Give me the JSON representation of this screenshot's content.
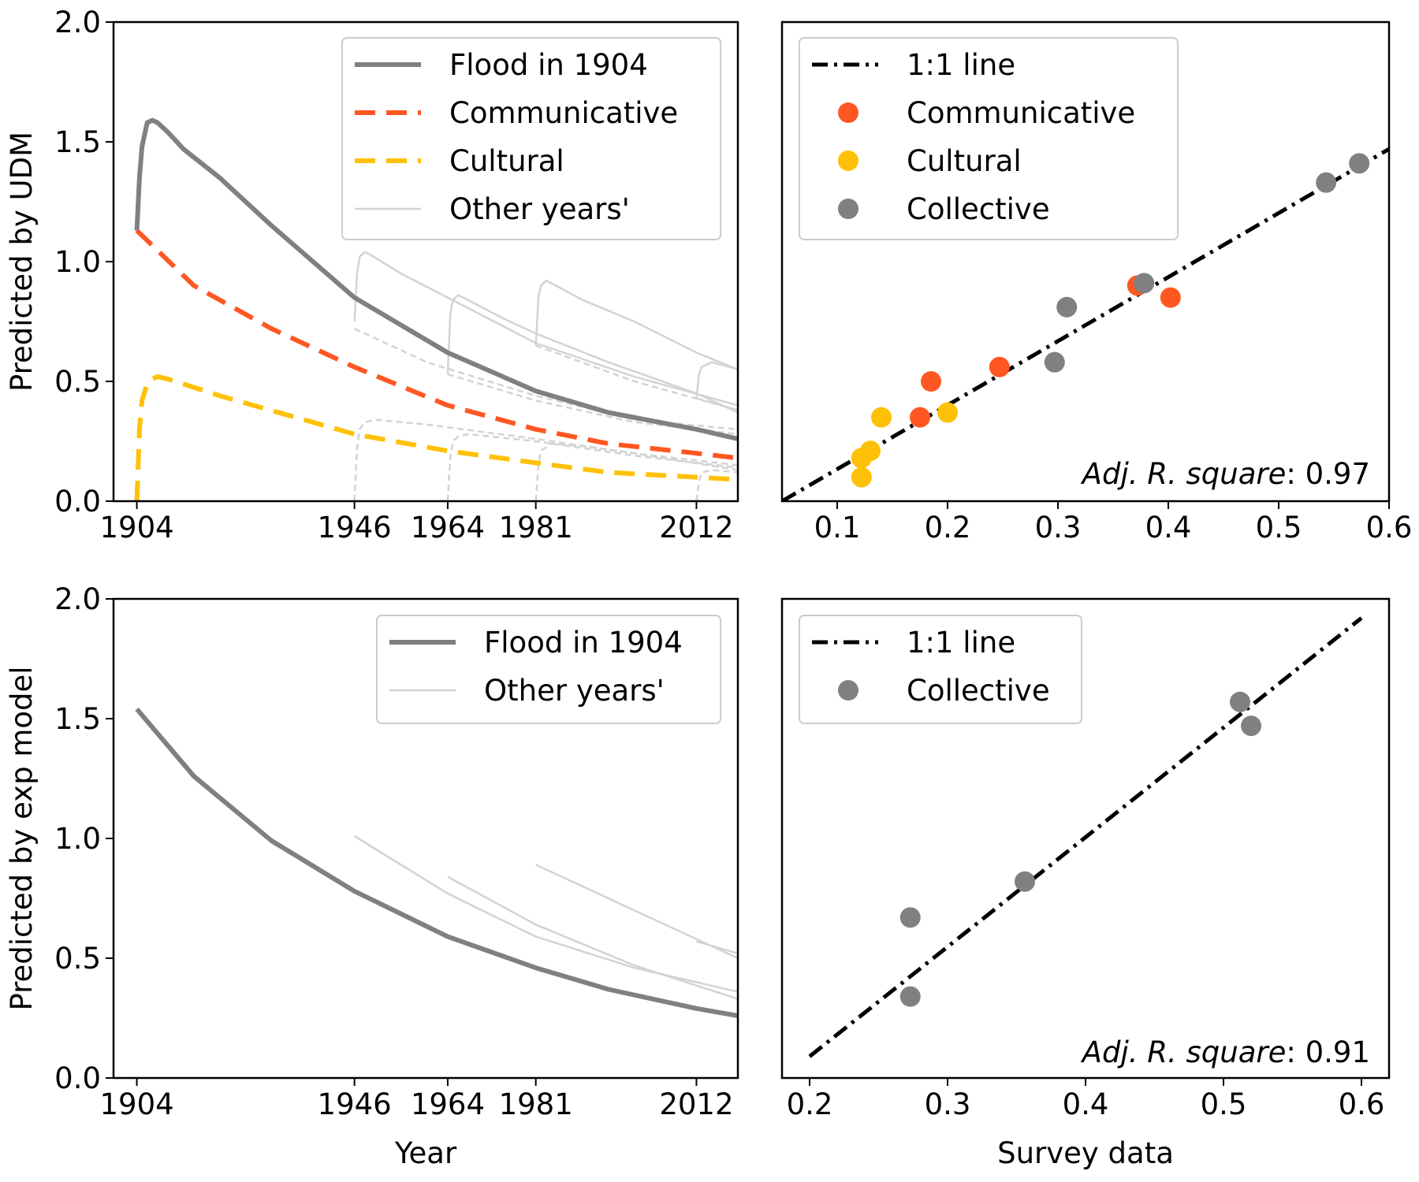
{
  "colors": {
    "flood": "#808080",
    "communicative": "#ff5722",
    "cultural": "#ffc107",
    "collective": "#808080",
    "other": "#d3d3d3",
    "oneToOne": "#000000"
  },
  "chart_data": [
    {
      "panel": "top-left",
      "type": "line",
      "xlabel": "",
      "ylabel": "Predicted by UDM",
      "xlim": [
        1899.5,
        2020
      ],
      "ylim": [
        0,
        2.0
      ],
      "xticks": [
        1904,
        1946,
        1964,
        1981,
        2012
      ],
      "yticks": [
        "0.0",
        "0.5",
        "1.0",
        "1.5",
        "2.0"
      ],
      "legend": {
        "position": "top-right",
        "entries": [
          {
            "label": "Flood in 1904",
            "style": "flood"
          },
          {
            "label": "Communicative",
            "style": "communicative"
          },
          {
            "label": "Cultural",
            "style": "cultural"
          },
          {
            "label": "Other years'",
            "style": "other"
          }
        ]
      },
      "series": [
        {
          "name": "Flood in 1904",
          "x": [
            1904,
            1904.5,
            1905,
            1906,
            1907,
            1908,
            1910,
            1913,
            1920,
            1930,
            1946,
            1964,
            1981,
            1995,
            2012,
            2020
          ],
          "y": [
            1.13,
            1.35,
            1.48,
            1.58,
            1.59,
            1.58,
            1.54,
            1.47,
            1.35,
            1.15,
            0.85,
            0.62,
            0.46,
            0.37,
            0.3,
            0.26
          ]
        },
        {
          "name": "Communicative",
          "x": [
            1904,
            1915,
            1930,
            1946,
            1964,
            1981,
            1995,
            2012,
            2020
          ],
          "y": [
            1.13,
            0.9,
            0.72,
            0.56,
            0.4,
            0.3,
            0.24,
            0.2,
            0.18
          ]
        },
        {
          "name": "Cultural",
          "x": [
            1904,
            1904.5,
            1905,
            1906,
            1907,
            1908,
            1910,
            1920,
            1946,
            1964,
            1981,
            1995,
            2012,
            2020
          ],
          "y": [
            0,
            0.3,
            0.42,
            0.49,
            0.51,
            0.52,
            0.51,
            0.44,
            0.28,
            0.21,
            0.16,
            0.12,
            0.1,
            0.09
          ]
        }
      ],
      "other_years_solid": [
        {
          "x": [
            1946,
            1946.5,
            1947,
            1948,
            1949,
            1955,
            1964,
            1981,
            2000,
            2020
          ],
          "y": [
            0.75,
            0.95,
            1.02,
            1.04,
            1.03,
            0.95,
            0.85,
            0.66,
            0.52,
            0.4
          ]
        },
        {
          "x": [
            1964,
            1964.5,
            1965,
            1966,
            1967,
            1975,
            1981,
            1995,
            2012,
            2020
          ],
          "y": [
            0.53,
            0.78,
            0.84,
            0.86,
            0.85,
            0.76,
            0.7,
            0.58,
            0.45,
            0.37
          ]
        },
        {
          "x": [
            1981,
            1981.5,
            1982,
            1983,
            1984,
            1990,
            2000,
            2012,
            2020
          ],
          "y": [
            0.65,
            0.85,
            0.9,
            0.92,
            0.91,
            0.84,
            0.75,
            0.62,
            0.55
          ]
        },
        {
          "x": [
            2012,
            2012.5,
            2013,
            2015,
            2020
          ],
          "y": [
            0.43,
            0.53,
            0.56,
            0.58,
            0.55
          ]
        }
      ],
      "other_years_dashed": [
        {
          "x": [
            1946,
            1960,
            1981,
            2000,
            2020
          ],
          "y": [
            0.72,
            0.58,
            0.44,
            0.34,
            0.3
          ]
        },
        {
          "x": [
            1964,
            1981,
            2000,
            2020
          ],
          "y": [
            0.53,
            0.42,
            0.33,
            0.28
          ]
        },
        {
          "x": [
            1981,
            2000,
            2020
          ],
          "y": [
            0.65,
            0.5,
            0.38
          ]
        },
        {
          "x": [
            2012,
            2020
          ],
          "y": [
            0.43,
            0.38
          ]
        },
        {
          "x": [
            1946,
            1946.5,
            1947,
            1948,
            1950,
            1960,
            1981,
            2000,
            2020
          ],
          "y": [
            0,
            0.22,
            0.3,
            0.33,
            0.34,
            0.32,
            0.26,
            0.2,
            0.15
          ]
        },
        {
          "x": [
            1964,
            1964.5,
            1965,
            1966,
            1968,
            1981,
            2000,
            2020
          ],
          "y": [
            0,
            0.18,
            0.25,
            0.27,
            0.28,
            0.25,
            0.19,
            0.14
          ]
        },
        {
          "x": [
            1981,
            1981.5,
            1982,
            1984,
            1990,
            2000,
            2020
          ],
          "y": [
            0,
            0.15,
            0.21,
            0.24,
            0.23,
            0.2,
            0.13
          ]
        },
        {
          "x": [
            2012,
            2012.5,
            2013,
            2015,
            2020
          ],
          "y": [
            0,
            0.08,
            0.12,
            0.13,
            0.12
          ]
        }
      ]
    },
    {
      "panel": "top-right",
      "type": "scatter",
      "xlabel": "",
      "ylabel": "",
      "xlim": [
        0.05,
        0.6
      ],
      "ylim": [
        0,
        2.0
      ],
      "xticks": [
        "0.1",
        "0.2",
        "0.3",
        "0.4",
        "0.5",
        "0.6"
      ],
      "one_to_one": {
        "x": [
          0.05,
          0.6
        ],
        "y": [
          0,
          1.47
        ]
      },
      "annotation": {
        "label": "Adj. R. square",
        "value": ": 0.97"
      },
      "legend": {
        "position": "top-left",
        "entries": [
          {
            "label": "1:1 line",
            "style": "oneToOne"
          },
          {
            "label": "Communicative",
            "style": "communicative"
          },
          {
            "label": "Cultural",
            "style": "cultural"
          },
          {
            "label": "Collective",
            "style": "collective"
          }
        ]
      },
      "series": [
        {
          "name": "Communicative",
          "points": [
            [
              0.175,
              0.35
            ],
            [
              0.185,
              0.5
            ],
            [
              0.247,
              0.56
            ],
            [
              0.372,
              0.9
            ],
            [
              0.402,
              0.85
            ]
          ]
        },
        {
          "name": "Cultural",
          "points": [
            [
              0.122,
              0.1
            ],
            [
              0.122,
              0.18
            ],
            [
              0.13,
              0.21
            ],
            [
              0.14,
              0.35
            ],
            [
              0.2,
              0.37
            ]
          ]
        },
        {
          "name": "Collective",
          "points": [
            [
              0.297,
              0.58
            ],
            [
              0.308,
              0.81
            ],
            [
              0.378,
              0.91
            ],
            [
              0.543,
              1.33
            ],
            [
              0.573,
              1.41
            ]
          ]
        }
      ]
    },
    {
      "panel": "bottom-left",
      "type": "line",
      "xlabel": "Year",
      "ylabel": "Predicted by exp model",
      "xlim": [
        1899.5,
        2020
      ],
      "ylim": [
        0,
        2.0
      ],
      "xticks": [
        1904,
        1946,
        1964,
        1981,
        2012
      ],
      "yticks": [
        "0.0",
        "0.5",
        "1.0",
        "1.5",
        "2.0"
      ],
      "legend": {
        "position": "top-right",
        "entries": [
          {
            "label": "Flood in 1904",
            "style": "flood"
          },
          {
            "label": "Other years'",
            "style": "other"
          }
        ]
      },
      "series": [
        {
          "name": "Flood in 1904",
          "x": [
            1904,
            1915,
            1930,
            1946,
            1964,
            1981,
            1995,
            2012,
            2020
          ],
          "y": [
            1.54,
            1.26,
            0.99,
            0.78,
            0.59,
            0.46,
            0.37,
            0.29,
            0.26
          ]
        }
      ],
      "other_years_solid": [
        {
          "x": [
            1946,
            1964,
            1981,
            2000,
            2020
          ],
          "y": [
            1.01,
            0.77,
            0.59,
            0.46,
            0.36
          ]
        },
        {
          "x": [
            1964,
            1981,
            2000,
            2020
          ],
          "y": [
            0.84,
            0.64,
            0.47,
            0.33
          ]
        },
        {
          "x": [
            1981,
            2000,
            2020
          ],
          "y": [
            0.89,
            0.7,
            0.5
          ]
        },
        {
          "x": [
            2012,
            2020
          ],
          "y": [
            0.57,
            0.52
          ]
        }
      ]
    },
    {
      "panel": "bottom-right",
      "type": "scatter",
      "xlabel": "Survey data",
      "ylabel": "",
      "xlim": [
        0.18,
        0.62
      ],
      "ylim": [
        0,
        2.0
      ],
      "xticks": [
        "0.2",
        "0.3",
        "0.4",
        "0.5",
        "0.6"
      ],
      "one_to_one": {
        "x": [
          0.2,
          0.6
        ],
        "y": [
          0.09,
          1.92
        ]
      },
      "annotation": {
        "label": "Adj. R. square",
        "value": ": 0.91"
      },
      "legend": {
        "position": "top-left",
        "entries": [
          {
            "label": "1:1 line",
            "style": "oneToOne"
          },
          {
            "label": "Collective",
            "style": "collective"
          }
        ]
      },
      "series": [
        {
          "name": "Collective",
          "points": [
            [
              0.273,
              0.67
            ],
            [
              0.273,
              0.34
            ],
            [
              0.356,
              0.82
            ],
            [
              0.512,
              1.57
            ],
            [
              0.52,
              1.47
            ]
          ]
        }
      ]
    }
  ]
}
